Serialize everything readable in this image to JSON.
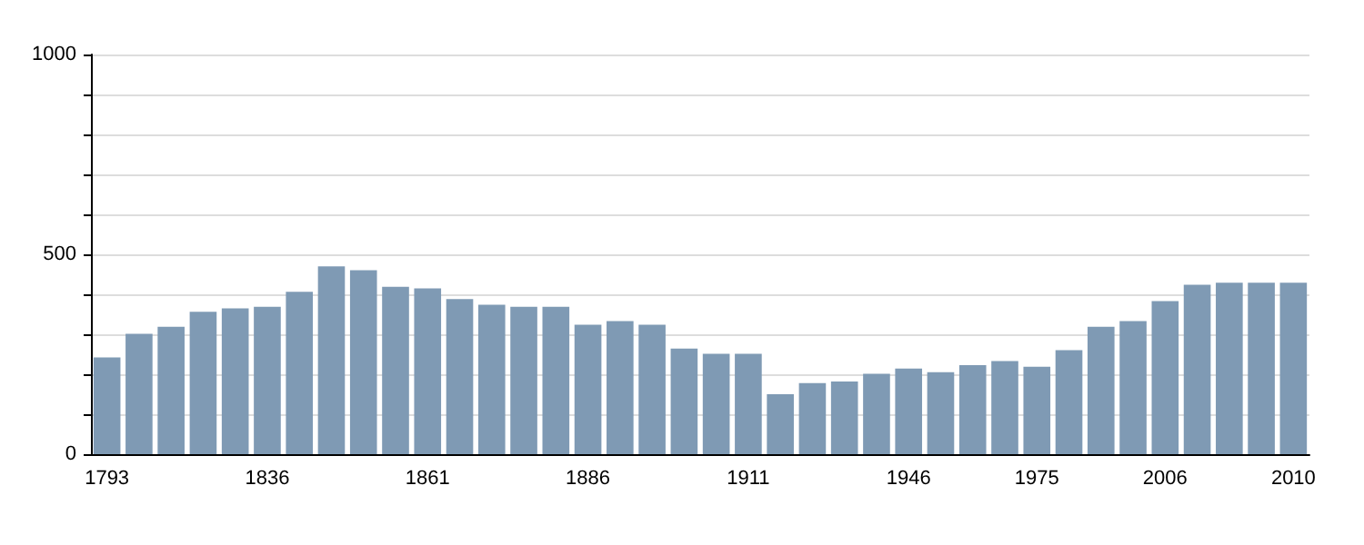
{
  "chart_data": {
    "type": "bar",
    "categories": [
      "1793",
      null,
      null,
      null,
      null,
      "1836",
      null,
      null,
      null,
      null,
      "1861",
      null,
      null,
      null,
      null,
      "1886",
      null,
      null,
      null,
      null,
      "1911",
      null,
      null,
      null,
      null,
      "1946",
      null,
      null,
      null,
      "1975",
      null,
      null,
      null,
      "2006",
      null,
      null,
      null,
      "2010"
    ],
    "values": [
      242,
      301,
      319,
      356,
      365,
      369,
      406,
      470,
      460,
      419,
      415,
      388,
      374,
      369,
      369,
      324,
      333,
      324,
      264,
      251,
      251,
      150,
      178,
      182,
      201,
      214,
      205,
      223,
      233,
      219,
      260,
      319,
      333,
      383,
      424,
      429,
      429,
      429
    ],
    "color": "#7f9ab4",
    "ylim": [
      0,
      1000
    ],
    "yticks": [
      0,
      {
        "value": 100,
        "label": null
      },
      {
        "value": 200,
        "label": null
      },
      {
        "value": 300,
        "label": null
      },
      {
        "value": 400,
        "label": null
      },
      500,
      {
        "value": 600,
        "label": null
      },
      {
        "value": 700,
        "label": null
      },
      {
        "value": 800,
        "label": null
      },
      {
        "value": 900,
        "label": null
      },
      1000
    ],
    "grid": "y"
  }
}
